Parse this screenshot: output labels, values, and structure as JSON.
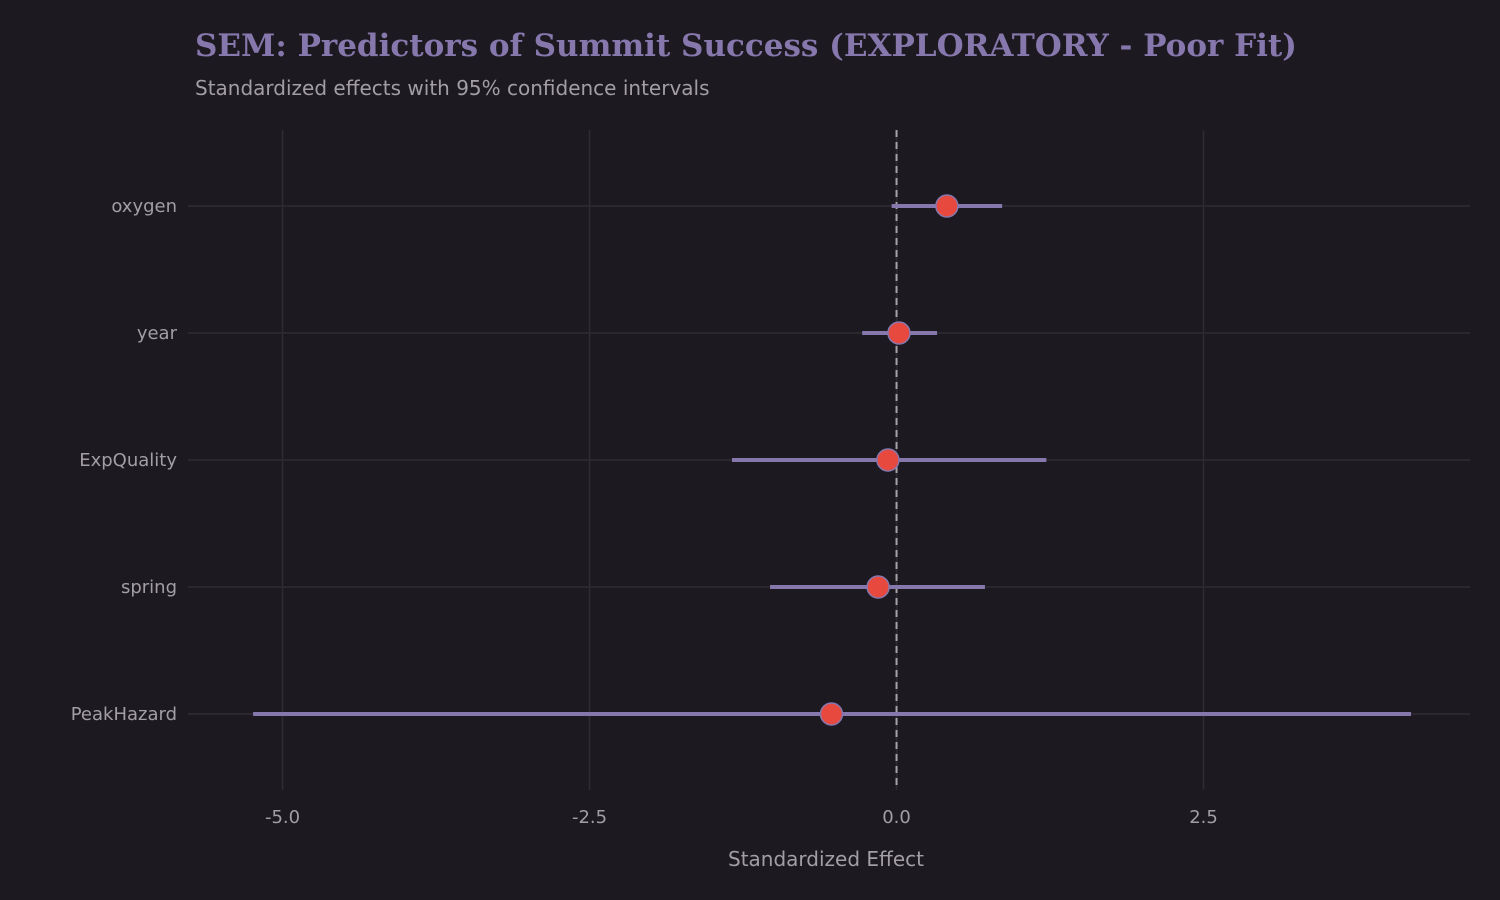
{
  "chart_data": {
    "type": "forest",
    "title": "SEM: Predictors of Summit Success (EXPLORATORY - Poor Fit)",
    "subtitle": "Standardized effects with 95% confidence intervals",
    "xlabel": "Standardized Effect",
    "ylabel": "",
    "xlim": [
      -5.77,
      4.67
    ],
    "xticks": [
      -5.0,
      -2.5,
      0.0,
      2.5
    ],
    "xtick_labels": [
      "-5.0",
      "-2.5",
      "0.0",
      "2.5"
    ],
    "reference_line": 0,
    "grid": true,
    "categories": [
      "oxygen",
      "year",
      "ExpQuality",
      "spring",
      "PeakHazard"
    ],
    "estimates": [
      0.41,
      0.02,
      -0.07,
      -0.15,
      -0.53
    ],
    "ci_lower": [
      -0.04,
      -0.28,
      -1.34,
      -1.03,
      -5.24
    ],
    "ci_upper": [
      0.86,
      0.33,
      1.22,
      0.72,
      4.19
    ],
    "colors": {
      "point": "#e8493f",
      "interval": "#8677ad",
      "background": "#1c1a20",
      "reference": "#a8a2a8"
    }
  }
}
